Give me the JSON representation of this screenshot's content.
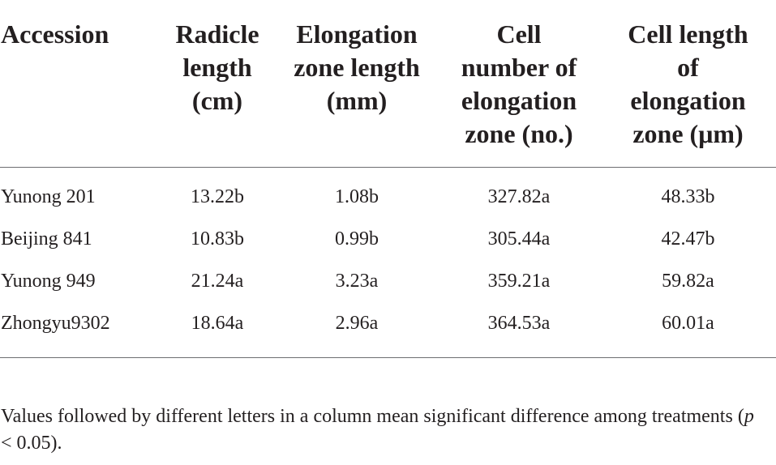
{
  "table": {
    "headers": [
      "Accession",
      "Radicle\nlength\n(cm)",
      "Elongation\nzone length\n(mm)",
      "Cell\nnumber of\nelongation\nzone (no.)",
      "Cell length\nof\nelongation\nzone (μm)"
    ],
    "rows": [
      [
        "Yunong 201",
        "13.22b",
        "1.08b",
        "327.82a",
        "48.33b"
      ],
      [
        "Beijing 841",
        "10.83b",
        "0.99b",
        "305.44a",
        "42.47b"
      ],
      [
        "Yunong 949",
        "21.24a",
        "3.23a",
        "359.21a",
        "59.82a"
      ],
      [
        "Zhongyu9302",
        "18.64a",
        "2.96a",
        "364.53a",
        "60.01a"
      ]
    ]
  },
  "footnote": {
    "text_before": "Values followed by different letters in a column mean significant difference among treatments (",
    "p_symbol": "p",
    "text_after": " < 0.05)."
  }
}
